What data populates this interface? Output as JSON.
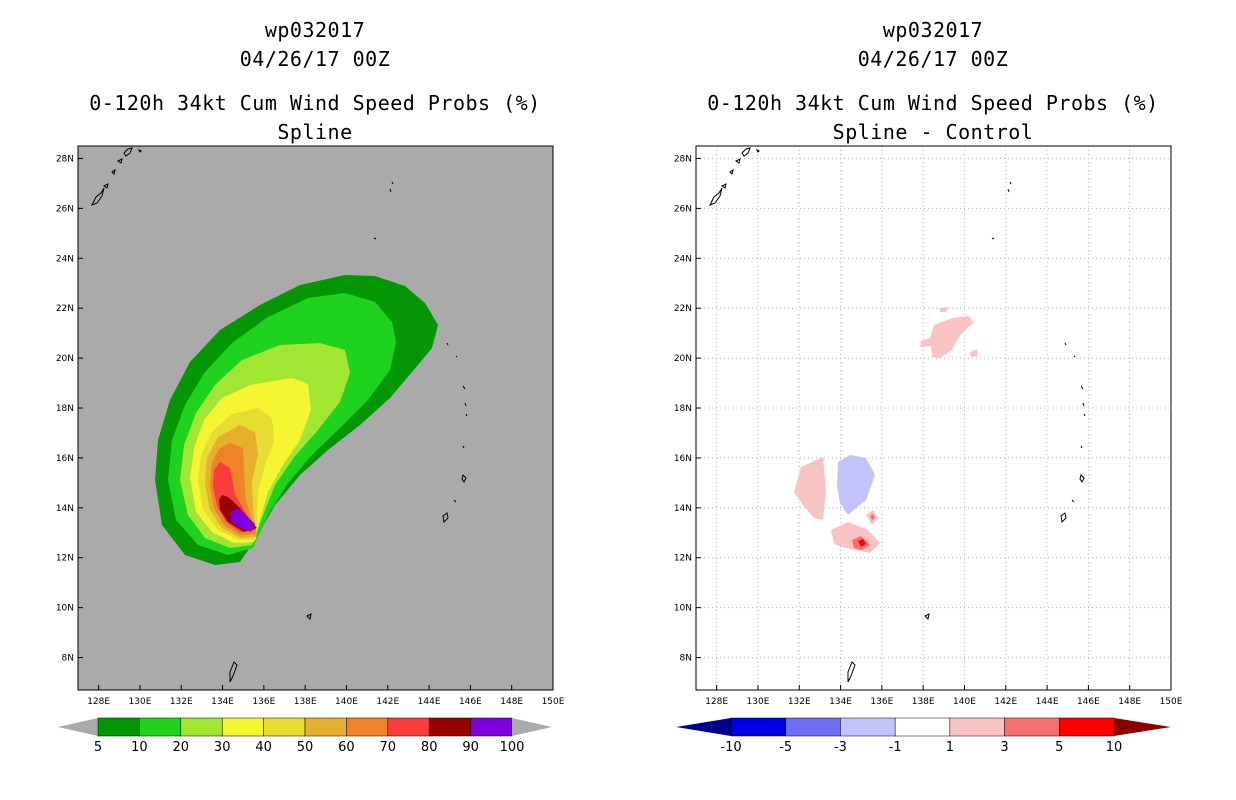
{
  "panels": [
    {
      "storm_id": "wp032017",
      "datetime": "04/26/17 00Z",
      "product": "0-120h 34kt Cum Wind Speed Probs (%)",
      "subtitle": "Spline",
      "colorbar": {
        "ticks": [
          "5",
          "10",
          "20",
          "30",
          "40",
          "50",
          "60",
          "70",
          "80",
          "90",
          "100"
        ],
        "colors": [
          "#049604",
          "#1ed21e",
          "#a0e632",
          "#f5f531",
          "#e6dc32",
          "#e6af2d",
          "#f08228",
          "#fa3c3c",
          "#960000",
          "#7d00dc"
        ]
      }
    },
    {
      "storm_id": "wp032017",
      "datetime": "04/26/17 00Z",
      "product": "0-120h 34kt Cum Wind Speed Probs (%)",
      "subtitle": "Spline - Control",
      "colorbar": {
        "ticks": [
          "-10",
          "-5",
          "-3",
          "-1",
          "1",
          "3",
          "5",
          "10"
        ],
        "colors": [
          "#0000e6",
          "#6e6ef0",
          "#c3c3fa",
          "#ffffff",
          "#fac3c3",
          "#f57070",
          "#ff0000"
        ],
        "end_low": "#00008c",
        "end_high": "#8c0000"
      }
    }
  ],
  "axes": {
    "lon_labels": [
      "128E",
      "130E",
      "132E",
      "134E",
      "136E",
      "138E",
      "140E",
      "142E",
      "144E",
      "146E",
      "148E",
      "150E"
    ],
    "lat_labels": [
      "28N",
      "26N",
      "24N",
      "22N",
      "20N",
      "18N",
      "16N",
      "14N",
      "12N",
      "10N",
      "8N"
    ]
  },
  "colors": {
    "map_background": "#aaaaaa",
    "frame": "#000000",
    "grid": "#b4b4b4"
  }
}
